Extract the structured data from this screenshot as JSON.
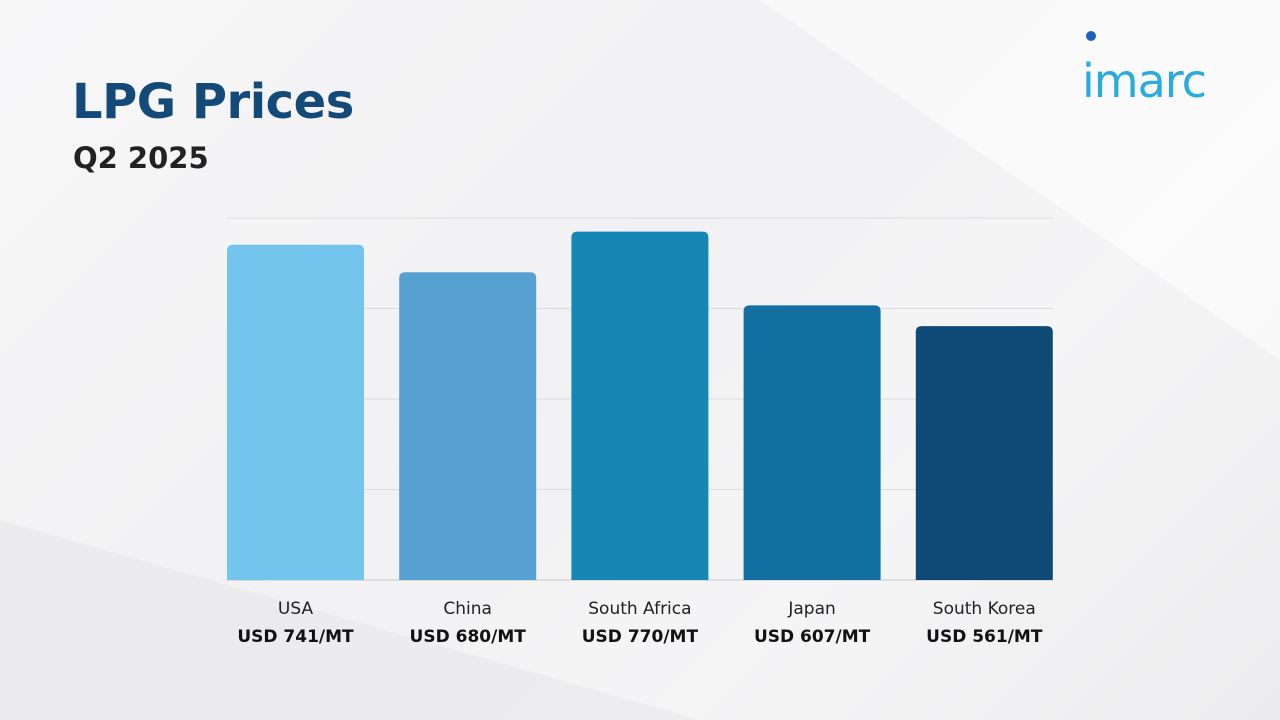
{
  "header": {
    "title": "LPG Prices",
    "subtitle": "Q2 2025"
  },
  "logo": {
    "text": "imarc"
  },
  "chart_data": {
    "type": "bar",
    "title": "LPG Prices",
    "subtitle": "Q2 2025",
    "categories": [
      "USA",
      "China",
      "South Africa",
      "Japan",
      "South Korea"
    ],
    "values": [
      741,
      680,
      770,
      607,
      561
    ],
    "value_labels": [
      "USD 741/MT",
      "USD 680/MT",
      "USD 770/MT",
      "USD 607/MT",
      "USD 561/MT"
    ],
    "colors": [
      "#74c5ee",
      "#56a0d2",
      "#1686b4",
      "#126fa0",
      "#0f4a77"
    ],
    "unit": "USD/MT",
    "ylim": [
      0,
      800
    ],
    "grid": true,
    "legend": "none"
  }
}
